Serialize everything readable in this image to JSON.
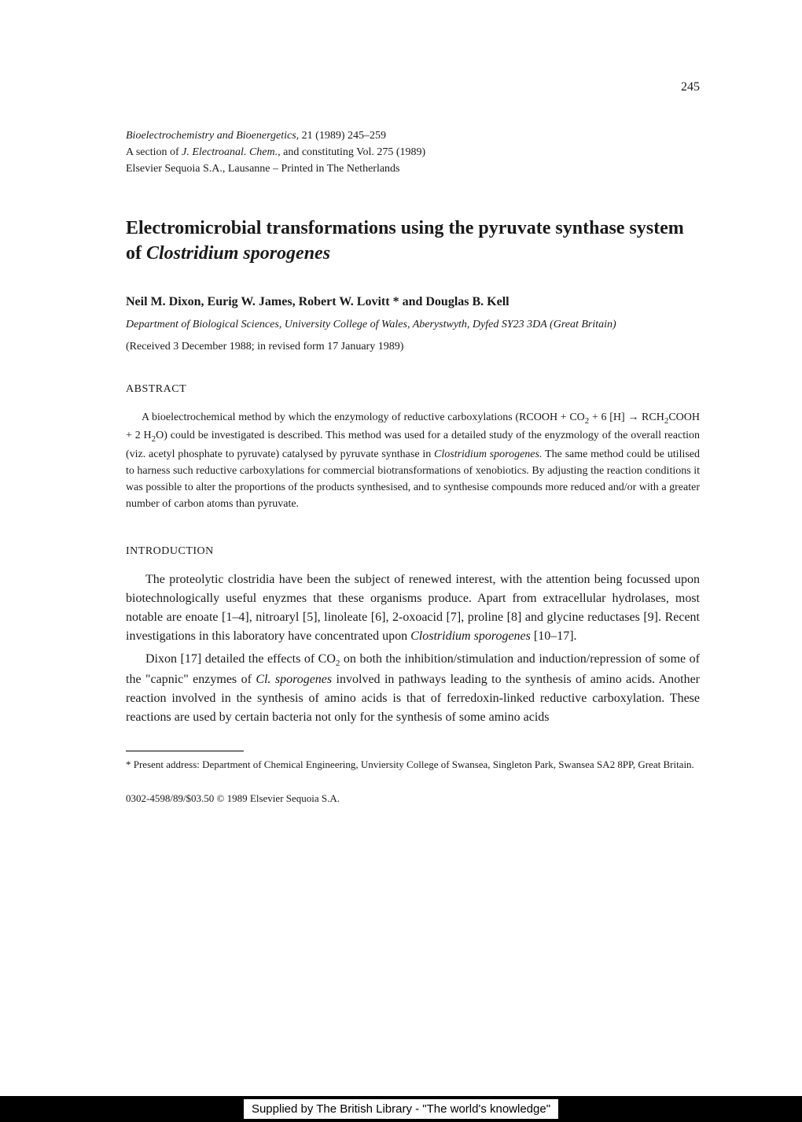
{
  "page_number": "245",
  "journal": {
    "line1_italic": "Bioelectrochemistry and Bioenergetics,",
    "line1_rest": " 21 (1989) 245–259",
    "line2_prefix": "A section of ",
    "line2_italic": "J. Electroanal. Chem.",
    "line2_rest": ", and constituting Vol. 275 (1989)",
    "line3": "Elsevier Sequoia S.A., Lausanne – Printed in The Netherlands"
  },
  "title": {
    "part1": "Electromicrobial transformations using the pyruvate synthase system of ",
    "italic_part": "Clostridium sporogenes"
  },
  "authors": "Neil M. Dixon, Eurig W. James, Robert W. Lovitt * and Douglas B. Kell",
  "affiliation": "Department of Biological Sciences, University College of Wales, Aberystwyth, Dyfed SY23 3DA (Great Britain)",
  "received": "(Received 3 December 1988; in revised form 17 January 1989)",
  "abstract_heading": "ABSTRACT",
  "abstract": {
    "text1": "A bioelectrochemical method by which the enzymology of reductive carboxylations (RCOOH + CO",
    "sub1": "2",
    "text2": " + 6 [H] → RCH",
    "sub2": "2",
    "text3": "COOH + 2 H",
    "sub3": "2",
    "text4": "O) could be investigated is described. This method was used for a detailed study of the enyzmology of the overall reaction (viz. acetyl phosphate to pyruvate) catalysed by pyruvate synthase in ",
    "italic1": "Clostridium sporogenes.",
    "text5": " The same method could be utilised to harness such reductive carboxylations for commercial biotransformations of xenobiotics. By adjusting the reaction conditions it was possible to alter the proportions of the products synthesised, and to synthesise compounds more reduced and/or with a greater number of carbon atoms than pyruvate."
  },
  "intro_heading": "INTRODUCTION",
  "para1": {
    "text1": "The proteolytic clostridia have been the subject of renewed interest, with the attention being focussed upon biotechnologically useful enyzmes that these organisms produce. Apart from extracellular hydrolases, most notable are enoate [1–4], nitroaryl [5], linoleate [6], 2-oxoacid [7], proline [8] and glycine reductases [9]. Recent investigations in this laboratory have concentrated upon ",
    "italic1": "Clostridium sporogenes",
    "text2": " [10–17]."
  },
  "para2": {
    "text1": "Dixon [17] detailed the effects of CO",
    "sub1": "2",
    "text2": " on both the inhibition/stimulation and induction/repression of some of the \"capnic\" enzymes of ",
    "italic1": "Cl. sporogenes",
    "text3": " involved in pathways leading to the synthesis of amino acids. Another reaction involved in the synthesis of amino acids is that of ferredoxin-linked reductive carboxylation. These reactions are used by certain bacteria not only for the synthesis of some amino acids"
  },
  "footnote": "* Present address: Department of Chemical Engineering, Unviersity College of Swansea, Singleton Park, Swansea SA2 8PP, Great Britain.",
  "copyright": "0302-4598/89/$03.50    © 1989 Elsevier Sequoia S.A.",
  "supplier": "Supplied by The British Library - \"The world's knowledge\""
}
